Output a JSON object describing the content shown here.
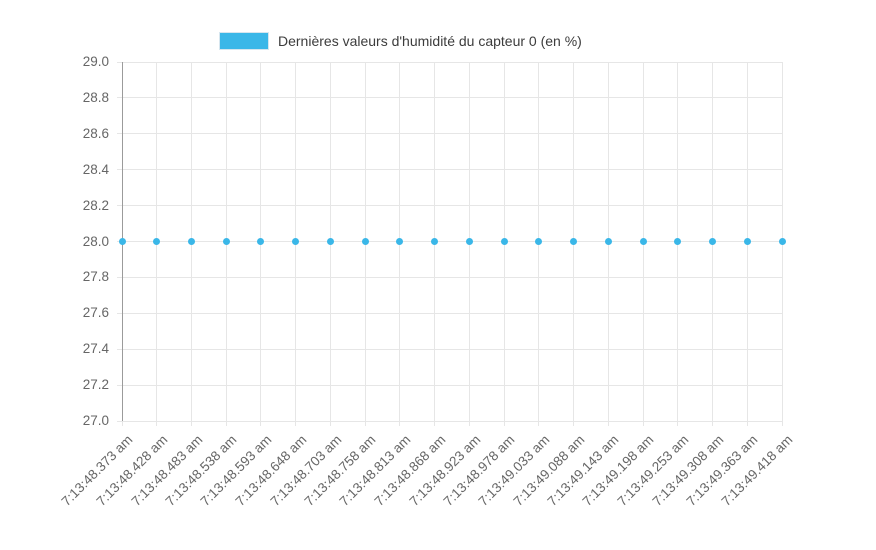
{
  "legend": {
    "items": [
      {
        "label": "Dernières valeurs d'humidité du capteur 0 (en %)",
        "color": "#3ab7e8"
      }
    ],
    "position": "top"
  },
  "chart_data": {
    "type": "scatter",
    "x": [
      "7:13:48.373 am",
      "7:13:48.428 am",
      "7:13:48.483 am",
      "7:13:48.538 am",
      "7:13:48.593 am",
      "7:13:48.648 am",
      "7:13:48.703 am",
      "7:13:48.758 am",
      "7:13:48.813 am",
      "7:13:48.868 am",
      "7:13:48.923 am",
      "7:13:48.978 am",
      "7:13:49.033 am",
      "7:13:49.088 am",
      "7:13:49.143 am",
      "7:13:49.198 am",
      "7:13:49.253 am",
      "7:13:49.308 am",
      "7:13:49.363 am",
      "7:13:49.418 am"
    ],
    "series": [
      {
        "name": "Dernières valeurs d'humidité du capteur 0 (en %)",
        "color": "#3ab7e8",
        "values": [
          28.0,
          28.0,
          28.0,
          28.0,
          28.0,
          28.0,
          28.0,
          28.0,
          28.0,
          28.0,
          28.0,
          28.0,
          28.0,
          28.0,
          28.0,
          28.0,
          28.0,
          28.0,
          28.0,
          28.0
        ]
      }
    ],
    "xlabel": "",
    "ylabel": "",
    "ylim": [
      27.0,
      29.0
    ],
    "ytick_step": 0.2,
    "y_tick_labels": [
      "29.0",
      "28.8",
      "28.6",
      "28.4",
      "28.2",
      "28.0",
      "27.8",
      "27.6",
      "27.4",
      "27.2",
      "27.0"
    ],
    "grid": true,
    "legend_position": "top",
    "x_tick_rotation_deg": -45
  },
  "style": {
    "background": "#ffffff",
    "accent": "#3ab7e8",
    "gridline_color": "#e6e6e6",
    "axis_line_color": "#9b9b9b",
    "tick_label_color": "#666666",
    "legend_text_color": "#3c3c3c"
  }
}
